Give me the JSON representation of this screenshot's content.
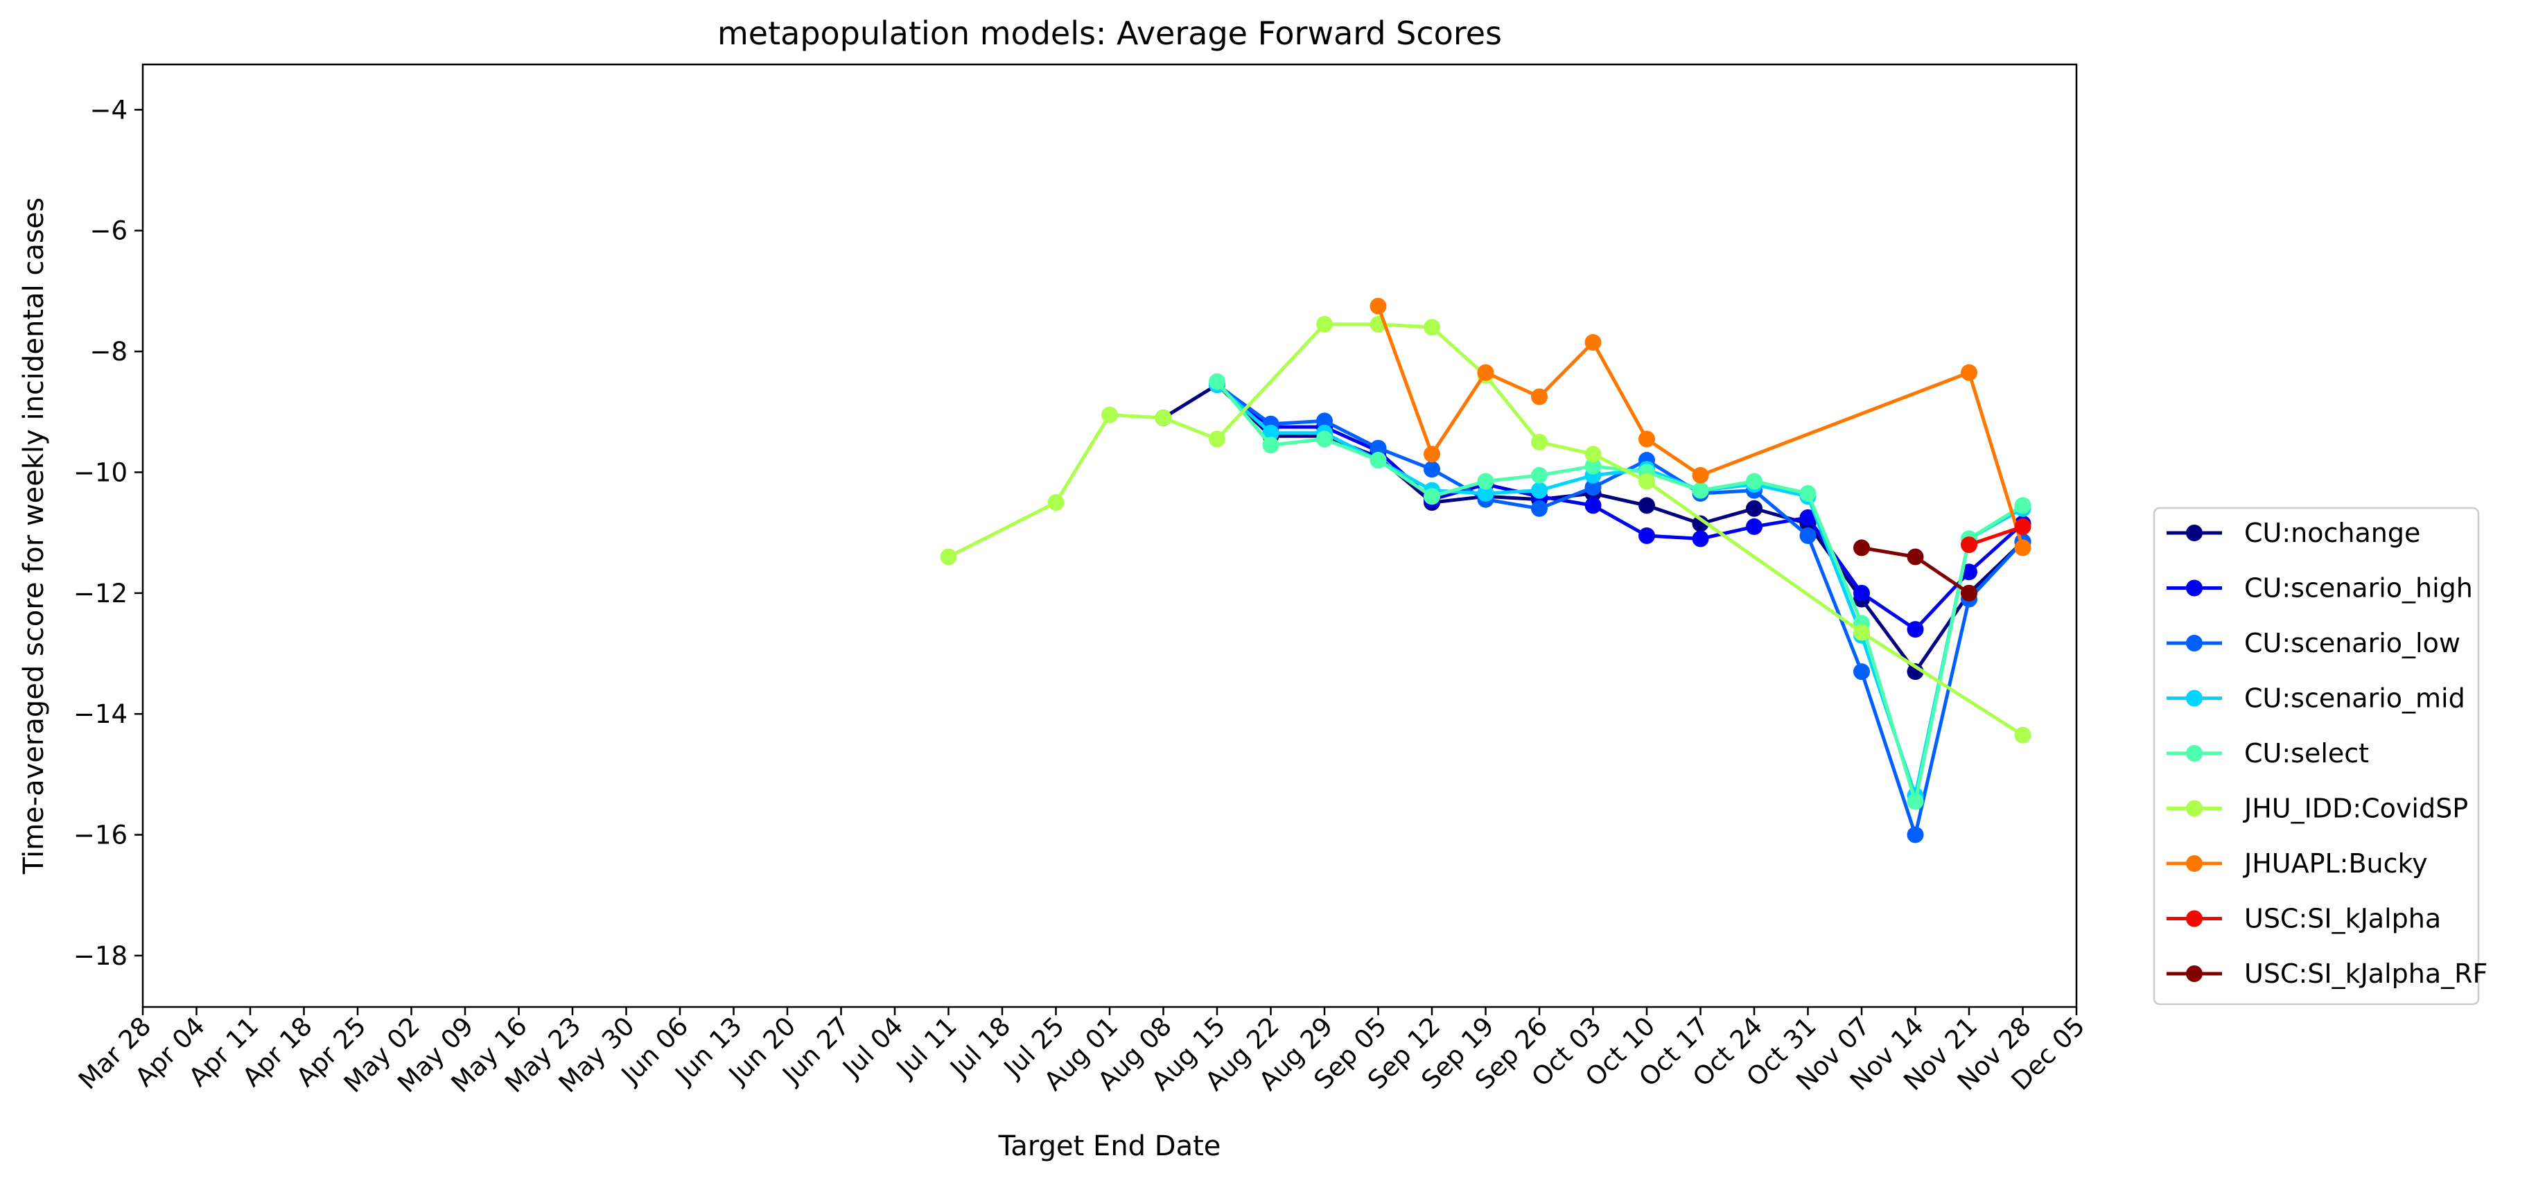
{
  "chart_data": {
    "type": "line",
    "title": "metapopulation models: Average Forward Scores",
    "xlabel": "Target End Date",
    "ylabel": "Time-averaged score for weekly incidental cases",
    "x_ticks": [
      "Mar 28",
      "Apr 04",
      "Apr 11",
      "Apr 18",
      "Apr 25",
      "May 02",
      "May 09",
      "May 16",
      "May 23",
      "May 30",
      "Jun 06",
      "Jun 13",
      "Jun 20",
      "Jun 27",
      "Jul 04",
      "Jul 11",
      "Jul 18",
      "Jul 25",
      "Aug 01",
      "Aug 08",
      "Aug 15",
      "Aug 22",
      "Aug 29",
      "Sep 05",
      "Sep 12",
      "Sep 19",
      "Sep 26",
      "Oct 03",
      "Oct 10",
      "Oct 17",
      "Oct 24",
      "Oct 31",
      "Nov 07",
      "Nov 14",
      "Nov 21",
      "Nov 28",
      "Dec 05"
    ],
    "y_ticks": [
      -4,
      -6,
      -8,
      -10,
      -12,
      -14,
      -16,
      -18
    ],
    "ylim": [
      -18.85,
      -3.25
    ],
    "grid": false,
    "legend_position": "outside-right",
    "series": [
      {
        "name": "CU:nochange",
        "color": "#000080",
        "x": [
          "Aug 08",
          "Aug 15",
          "Aug 22",
          "Aug 29",
          "Sep 05",
          "Sep 12",
          "Sep 19",
          "Sep 26",
          "Oct 03",
          "Oct 10",
          "Oct 17",
          "Oct 24",
          "Oct 31",
          "Nov 07",
          "Nov 14",
          "Nov 21",
          "Nov 28"
        ],
        "y": [
          -9.1,
          -8.55,
          -9.4,
          -9.4,
          -9.75,
          -10.5,
          -10.4,
          -10.45,
          -10.35,
          -10.55,
          -10.85,
          -10.6,
          -10.85,
          -12.1,
          -13.3,
          -12.0,
          -11.15
        ]
      },
      {
        "name": "CU:scenario_high",
        "color": "#0000f1",
        "x": [
          "Aug 15",
          "Aug 22",
          "Aug 29",
          "Sep 05",
          "Sep 12",
          "Sep 19",
          "Sep 26",
          "Oct 03",
          "Oct 10",
          "Oct 17",
          "Oct 24",
          "Oct 31",
          "Nov 07",
          "Nov 14",
          "Nov 21",
          "Nov 28"
        ],
        "y": [
          -8.55,
          -9.25,
          -9.25,
          -9.65,
          -10.45,
          -10.2,
          -10.4,
          -10.55,
          -11.05,
          -11.1,
          -10.9,
          -10.75,
          -12.0,
          -12.6,
          -11.65,
          -10.85
        ]
      },
      {
        "name": "CU:scenario_low",
        "color": "#0060ff",
        "x": [
          "Aug 15",
          "Aug 22",
          "Aug 29",
          "Sep 05",
          "Sep 12",
          "Sep 19",
          "Sep 26",
          "Oct 03",
          "Oct 10",
          "Oct 17",
          "Oct 24",
          "Oct 31",
          "Nov 07",
          "Nov 14",
          "Nov 21",
          "Nov 28"
        ],
        "y": [
          -8.55,
          -9.2,
          -9.15,
          -9.6,
          -9.95,
          -10.45,
          -10.6,
          -10.25,
          -9.8,
          -10.35,
          -10.3,
          -11.05,
          -13.3,
          -16.0,
          -12.1,
          -11.15
        ]
      },
      {
        "name": "CU:scenario_mid",
        "color": "#00d4ff",
        "x": [
          "Aug 15",
          "Aug 22",
          "Aug 29",
          "Sep 05",
          "Sep 12",
          "Sep 19",
          "Sep 26",
          "Oct 03",
          "Oct 10",
          "Oct 17",
          "Oct 24",
          "Oct 31",
          "Nov 07",
          "Nov 14",
          "Nov 21",
          "Nov 28"
        ],
        "y": [
          -8.55,
          -9.35,
          -9.35,
          -9.8,
          -10.3,
          -10.35,
          -10.3,
          -10.05,
          -9.95,
          -10.3,
          -10.2,
          -10.4,
          -12.7,
          -15.35,
          -11.1,
          -10.6
        ]
      },
      {
        "name": "CU:select",
        "color": "#4dffad",
        "x": [
          "Aug 15",
          "Aug 22",
          "Aug 29",
          "Sep 05",
          "Sep 12",
          "Sep 19",
          "Sep 26",
          "Oct 03",
          "Oct 10",
          "Oct 17",
          "Oct 24",
          "Oct 31",
          "Nov 07",
          "Nov 14",
          "Nov 21",
          "Nov 28"
        ],
        "y": [
          -8.5,
          -9.55,
          -9.45,
          -9.8,
          -10.4,
          -10.15,
          -10.05,
          -9.9,
          -10.0,
          -10.3,
          -10.15,
          -10.35,
          -12.5,
          -15.45,
          -11.1,
          -10.55
        ]
      },
      {
        "name": "JHU_IDD:CovidSP",
        "color": "#adff4d",
        "x": [
          "Jul 11",
          "Jul 25",
          "Aug 01",
          "Aug 08",
          "Aug 15",
          "Aug 29",
          "Sep 05",
          "Sep 12",
          "Sep 19",
          "Sep 26",
          "Oct 03",
          "Oct 10",
          "Nov 07",
          "Nov 28"
        ],
        "y": [
          -11.4,
          -10.5,
          -9.05,
          -9.1,
          -9.45,
          -7.55,
          -7.55,
          -7.6,
          -8.4,
          -9.5,
          -9.7,
          -10.15,
          -12.65,
          -14.35
        ]
      },
      {
        "name": "JHUAPL:Bucky",
        "color": "#ff7700",
        "x": [
          "Sep 05",
          "Sep 12",
          "Sep 19",
          "Sep 26",
          "Oct 03",
          "Oct 10",
          "Oct 17",
          "Nov 21",
          "Nov 28"
        ],
        "y": [
          -7.25,
          -9.7,
          -8.35,
          -8.75,
          -7.85,
          -9.45,
          -10.05,
          -8.35,
          -11.25
        ]
      },
      {
        "name": "USC:SI_kJalpha",
        "color": "#f10800",
        "x": [
          "Nov 21",
          "Nov 28"
        ],
        "y": [
          -11.2,
          -10.9
        ]
      },
      {
        "name": "USC:SI_kJalpha_RF",
        "color": "#800000",
        "x": [
          "Nov 07",
          "Nov 14",
          "Nov 21"
        ],
        "y": [
          -11.25,
          -11.4,
          -12.0
        ]
      }
    ]
  }
}
